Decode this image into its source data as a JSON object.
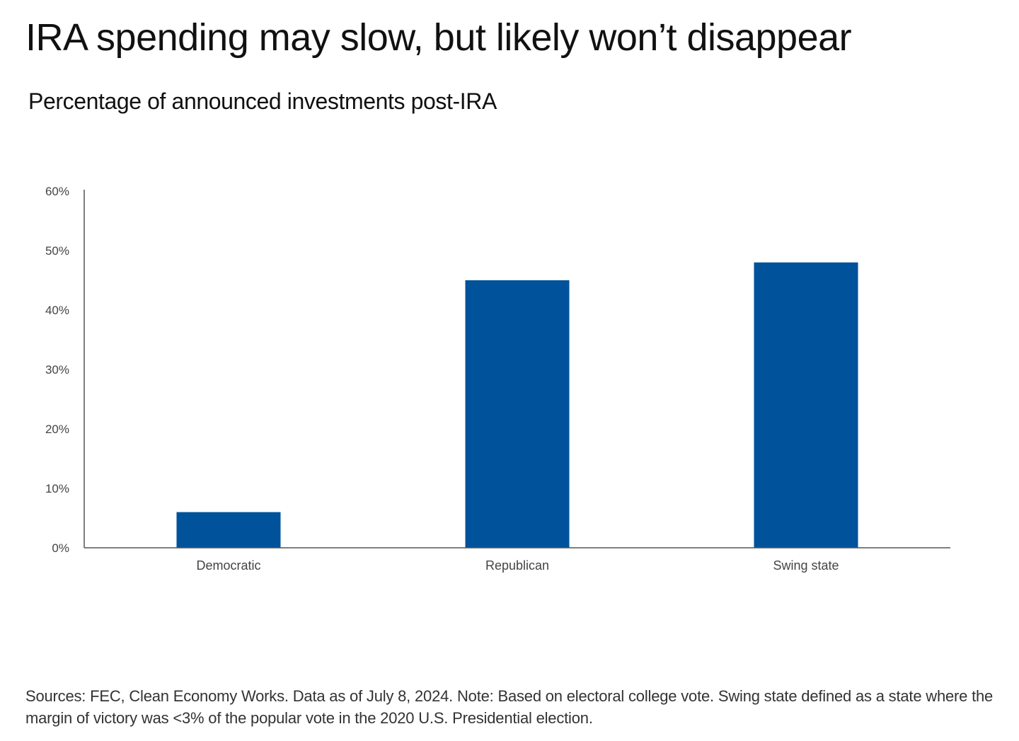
{
  "header": {
    "title": "IRA spending may slow, but likely won’t disappear",
    "subtitle": "Percentage of announced investments post-IRA"
  },
  "footer": {
    "source_note": "Sources: FEC, Clean Economy Works. Data as of July 8, 2024. Note: Based on electoral college vote. Swing state defined as a state where the margin of victory was <3% of the popular vote in the 2020 U.S. Presidential election."
  },
  "colors": {
    "bar": "#00529B",
    "axis": "#555555",
    "tick_text": "#444444"
  },
  "chart_data": {
    "type": "bar",
    "title": "Percentage of announced investments post-IRA",
    "categories": [
      "Democratic",
      "Republican",
      "Swing state"
    ],
    "values": [
      6,
      45,
      48
    ],
    "ylim": [
      0,
      60
    ],
    "yticks": [
      0,
      10,
      20,
      30,
      40,
      50,
      60
    ],
    "ytick_labels": [
      "0%",
      "10%",
      "20%",
      "30%",
      "40%",
      "50%",
      "60%"
    ],
    "xlabel": "",
    "ylabel": "",
    "grid": false,
    "legend": "none"
  }
}
